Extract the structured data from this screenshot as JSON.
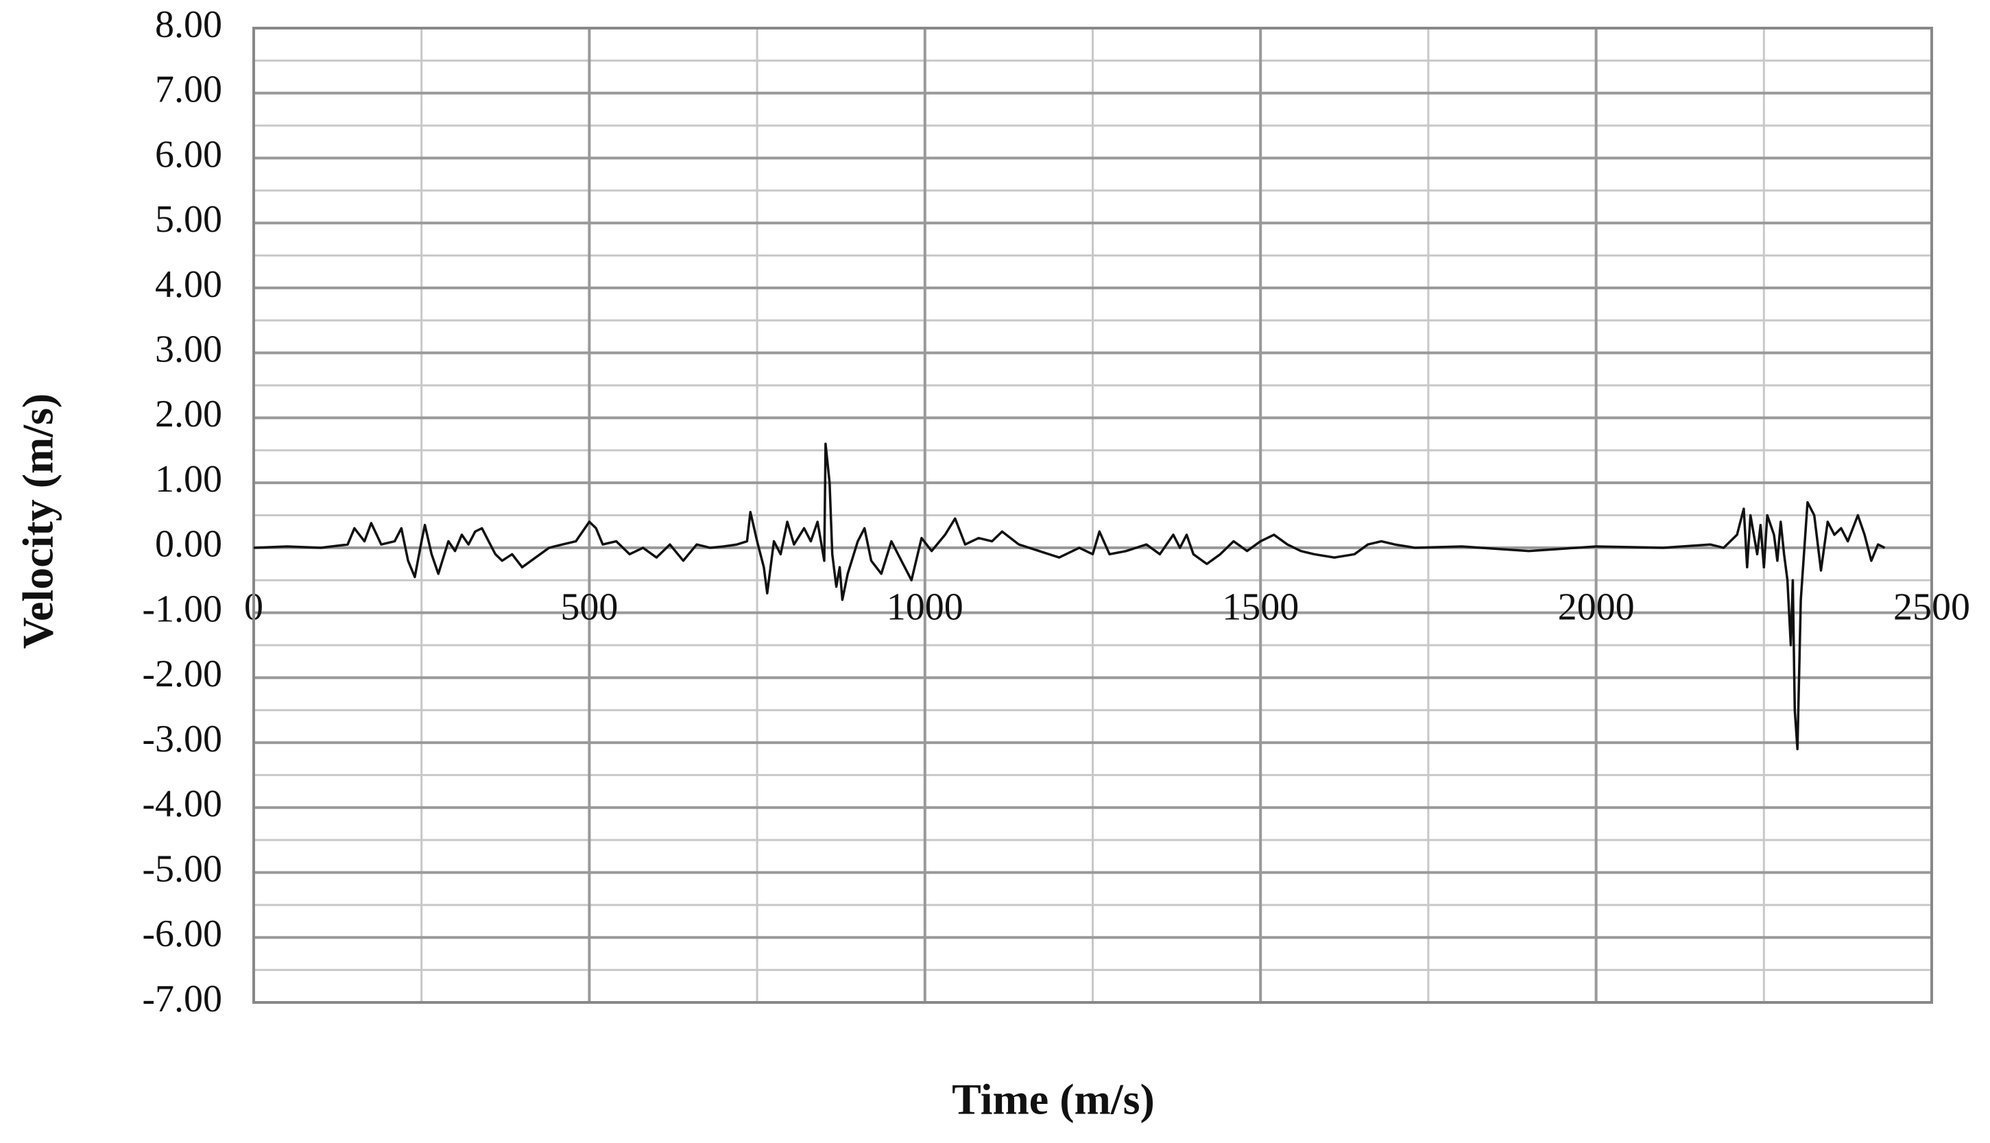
{
  "chart_data": {
    "type": "line",
    "xlabel": "Time (m/s)",
    "ylabel": "Velocity (m/s)",
    "x": [
      0,
      50,
      100,
      140,
      150,
      165,
      175,
      190,
      210,
      220,
      230,
      240,
      250,
      255,
      265,
      275,
      290,
      300,
      310,
      320,
      330,
      340,
      350,
      360,
      370,
      385,
      400,
      420,
      440,
      460,
      480,
      500,
      510,
      520,
      540,
      560,
      580,
      600,
      620,
      640,
      660,
      680,
      700,
      720,
      735,
      740,
      750,
      760,
      765,
      775,
      785,
      795,
      805,
      820,
      830,
      840,
      850,
      852,
      858,
      862,
      868,
      873,
      877,
      885,
      900,
      910,
      920,
      935,
      950,
      965,
      980,
      995,
      1010,
      1030,
      1045,
      1060,
      1080,
      1100,
      1115,
      1140,
      1170,
      1200,
      1230,
      1250,
      1260,
      1275,
      1300,
      1330,
      1350,
      1370,
      1380,
      1390,
      1400,
      1420,
      1440,
      1460,
      1480,
      1500,
      1520,
      1540,
      1560,
      1580,
      1610,
      1640,
      1660,
      1680,
      1700,
      1730,
      1800,
      1900,
      2000,
      2100,
      2170,
      2190,
      2210,
      2220,
      2225,
      2230,
      2240,
      2245,
      2250,
      2255,
      2265,
      2270,
      2275,
      2280,
      2285,
      2290,
      2293,
      2296,
      2300,
      2305,
      2315,
      2325,
      2335,
      2345,
      2355,
      2365,
      2375,
      2390,
      2400,
      2410,
      2420,
      2430
    ],
    "values": [
      0,
      0.02,
      0,
      0.05,
      0.3,
      0.1,
      0.38,
      0.05,
      0.1,
      0.3,
      -0.2,
      -0.45,
      0.1,
      0.35,
      -0.1,
      -0.4,
      0.1,
      -0.05,
      0.2,
      0.05,
      0.25,
      0.3,
      0.1,
      -0.1,
      -0.2,
      -0.1,
      -0.3,
      -0.15,
      0,
      0.05,
      0.1,
      0.4,
      0.3,
      0.05,
      0.1,
      -0.1,
      0,
      -0.15,
      0.05,
      -0.2,
      0.05,
      0,
      0.02,
      0.05,
      0.1,
      0.55,
      0.1,
      -0.3,
      -0.7,
      0.1,
      -0.1,
      0.4,
      0.05,
      0.3,
      0.1,
      0.4,
      -0.2,
      1.6,
      1.0,
      -0.1,
      -0.6,
      -0.3,
      -0.8,
      -0.4,
      0.1,
      0.3,
      -0.2,
      -0.4,
      0.1,
      -0.2,
      -0.5,
      0.15,
      -0.05,
      0.2,
      0.45,
      0.05,
      0.15,
      0.1,
      0.25,
      0.05,
      -0.05,
      -0.15,
      0,
      -0.1,
      0.25,
      -0.1,
      -0.05,
      0.05,
      -0.1,
      0.2,
      0,
      0.2,
      -0.1,
      -0.25,
      -0.1,
      0.1,
      -0.05,
      0.1,
      0.2,
      0.05,
      -0.05,
      -0.1,
      -0.15,
      -0.1,
      0.05,
      0.1,
      0.05,
      0,
      0.02,
      -0.05,
      0.02,
      0,
      0.05,
      0,
      0.2,
      0.6,
      -0.3,
      0.5,
      -0.1,
      0.35,
      -0.3,
      0.5,
      0.2,
      -0.2,
      0.4,
      -0.1,
      -0.5,
      -1.5,
      -0.5,
      -2.5,
      -3.1,
      -0.8,
      0.7,
      0.5,
      -0.35,
      0.4,
      0.2,
      0.3,
      0.1,
      0.5,
      0.2,
      -0.2,
      0.05,
      0
    ],
    "color": "#111111",
    "xlim": [
      0,
      2500
    ],
    "xticks": [
      0,
      500,
      1000,
      1500,
      2000,
      2500
    ],
    "ylim": [
      -7,
      8
    ],
    "yticks": [
      {
        "value": 8,
        "label": "8.00"
      },
      {
        "value": 7,
        "label": "7.00"
      },
      {
        "value": 6,
        "label": "6.00"
      },
      {
        "value": 5,
        "label": "5.00"
      },
      {
        "value": 4,
        "label": "4.00"
      },
      {
        "value": 3,
        "label": "3.00"
      },
      {
        "value": 2,
        "label": "2.00"
      },
      {
        "value": 1,
        "label": "1.00"
      },
      {
        "value": 0,
        "label": "0.00"
      },
      {
        "value": -1,
        "label": "-1.00"
      },
      {
        "value": -2,
        "label": "-2.00"
      },
      {
        "value": -3,
        "label": "-3.00"
      },
      {
        "value": -4,
        "label": "-4.00"
      },
      {
        "value": -5,
        "label": "-5.00"
      },
      {
        "value": -6,
        "label": "-6.00"
      },
      {
        "value": -7,
        "label": "-7.00"
      }
    ],
    "grid": true,
    "minor_grid": true
  }
}
